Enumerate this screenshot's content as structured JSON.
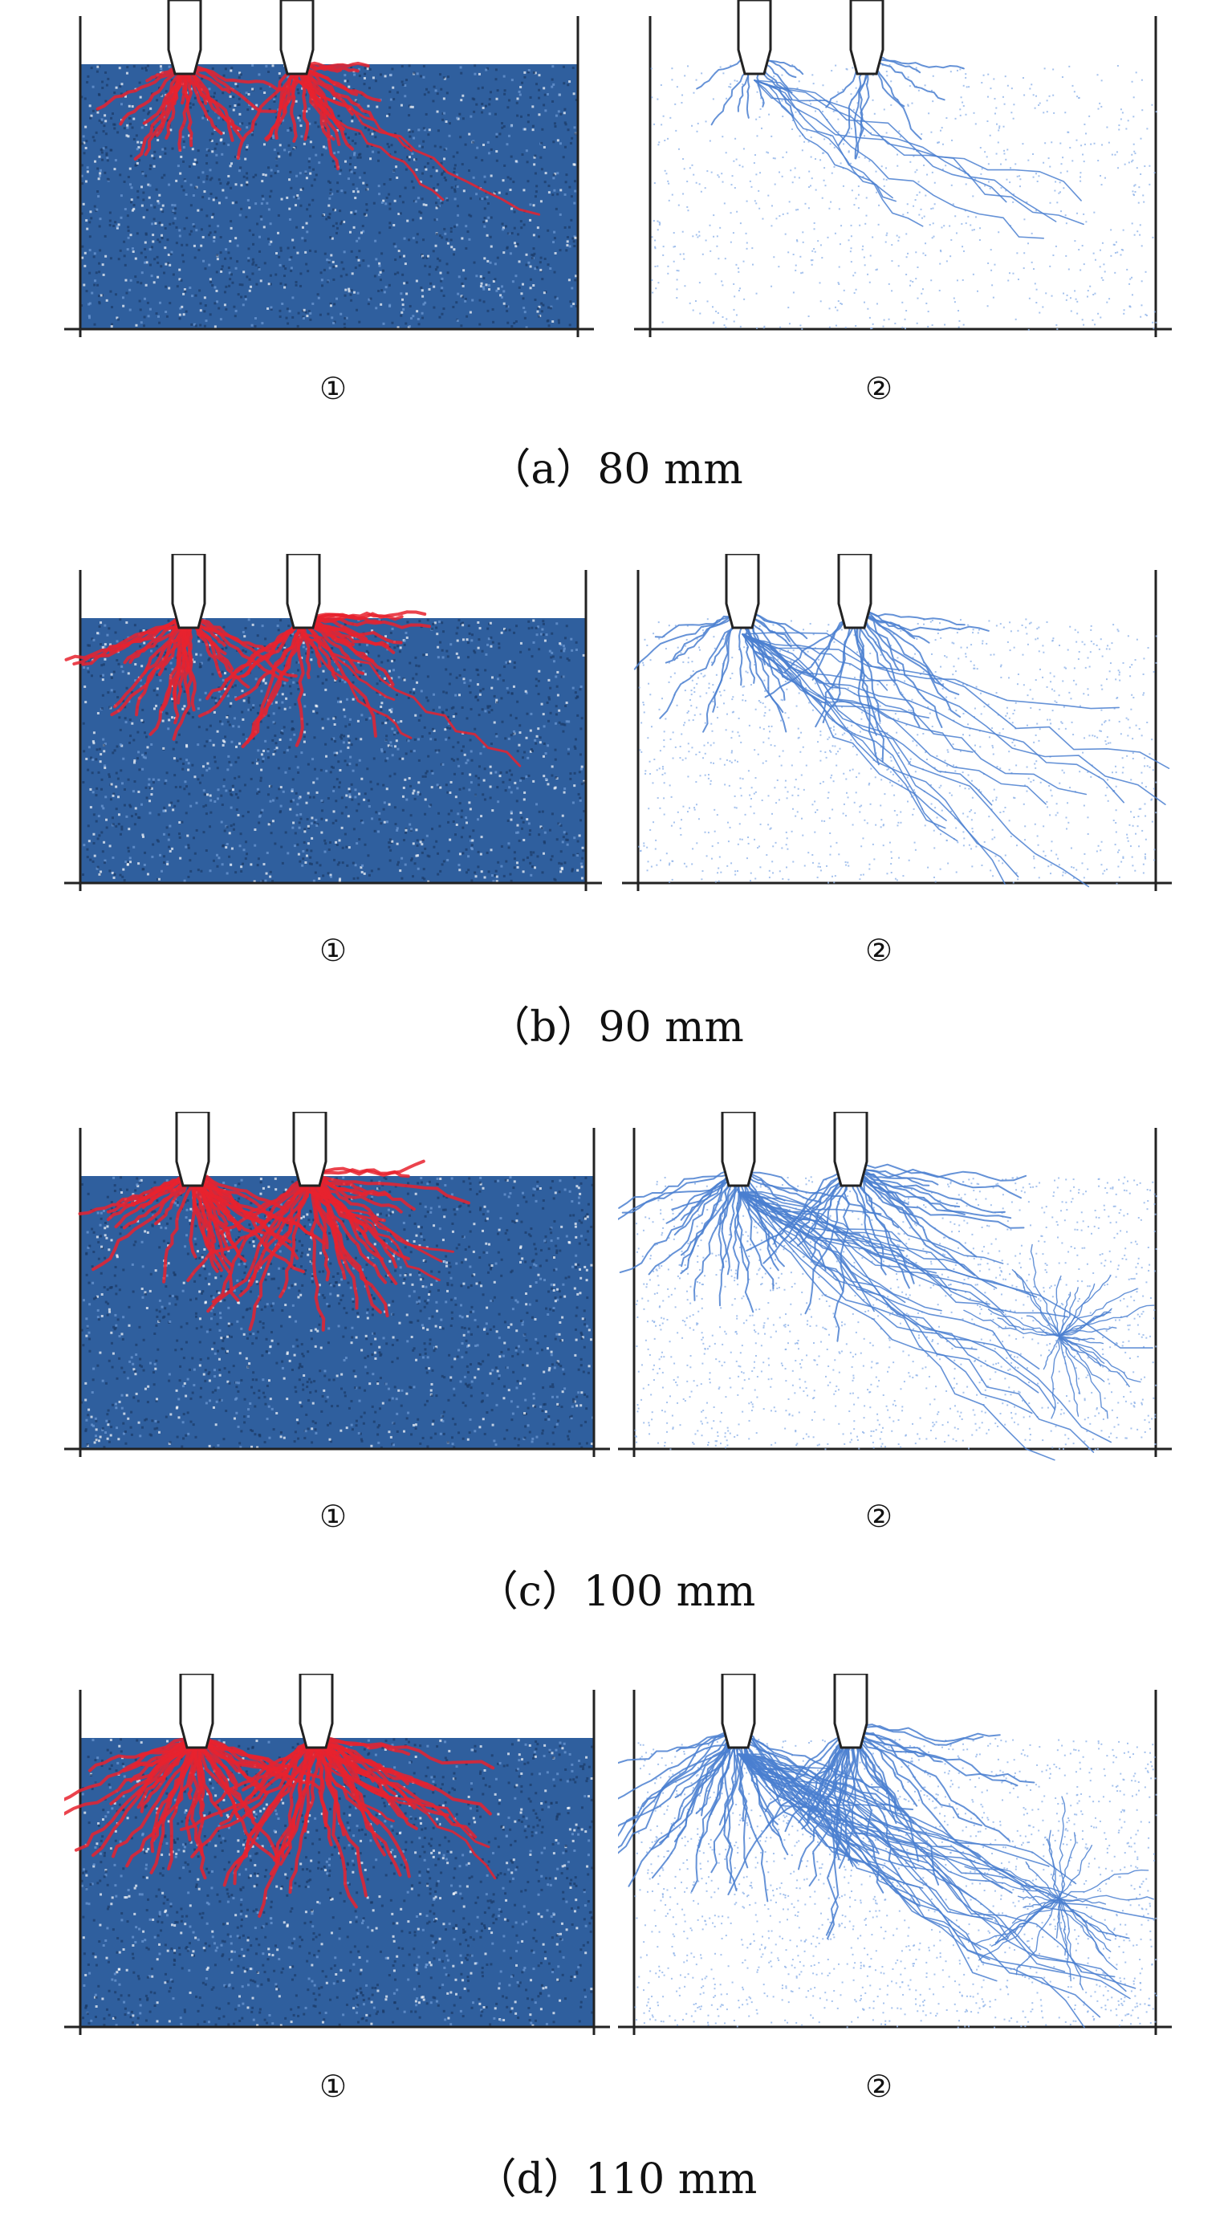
{
  "figure": {
    "groups": [
      {
        "id": "a",
        "caption": "（a）80 mm",
        "left_label": "①",
        "right_label": "②"
      },
      {
        "id": "b",
        "caption": "（b）90 mm",
        "left_label": "①",
        "right_label": "②"
      },
      {
        "id": "c",
        "caption": "（c）100 mm",
        "left_label": "①",
        "right_label": "②"
      },
      {
        "id": "d",
        "caption": "（d）110 mm",
        "left_label": "①",
        "right_label": "②"
      }
    ],
    "colors": {
      "particle_bed": "#2f5f9e",
      "particle_dark": "#1b3a66",
      "crack_red": "#e8222e",
      "force_chain_blue": "#4a7fd0",
      "force_chain_light": "#8fb3e8",
      "outline": "#222222"
    },
    "icons": [
      "cutter-pick-icon"
    ]
  }
}
